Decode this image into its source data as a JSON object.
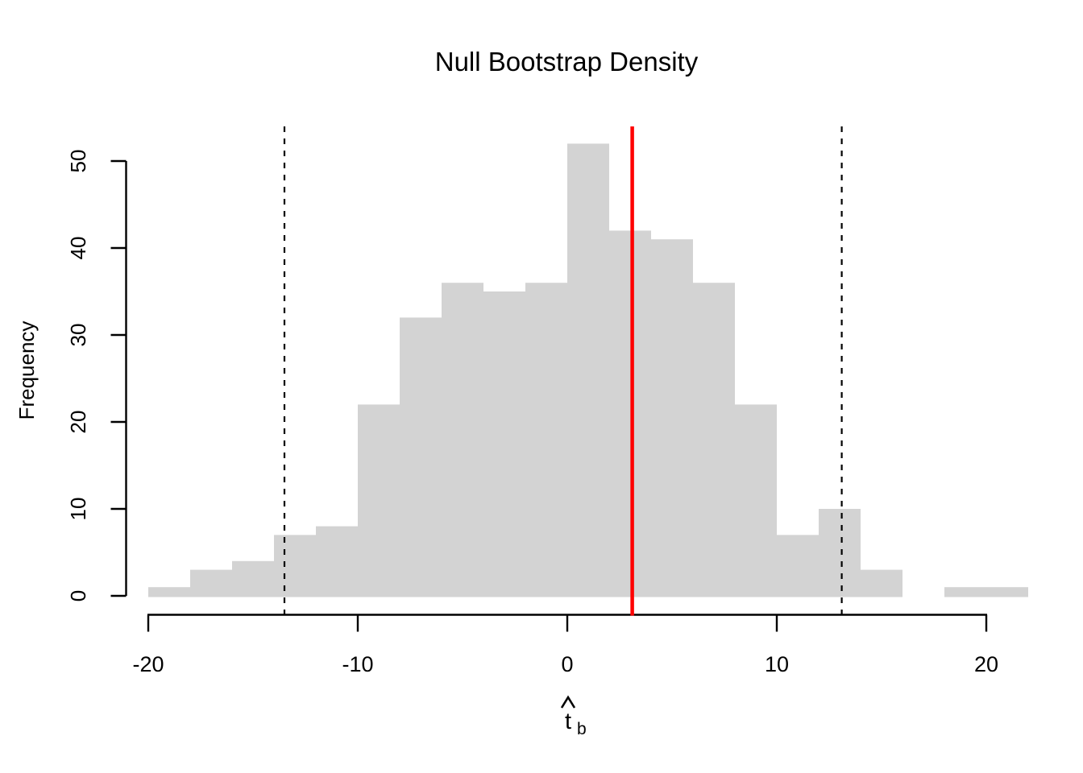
{
  "figure": {
    "title": "Null Bootstrap Density",
    "ylabel": "Frequency",
    "xlabel": {
      "base": "t",
      "sub": "b",
      "accent": "hat"
    }
  },
  "chart_data": {
    "type": "bar",
    "subtype": "histogram",
    "title": "Null Bootstrap Density",
    "xlabel": "t̂_b",
    "ylabel": "Frequency",
    "bin_edges": [
      -20,
      -18,
      -16,
      -14,
      -12,
      -10,
      -8,
      -6,
      -4,
      -2,
      0,
      2,
      4,
      6,
      8,
      10,
      12,
      14,
      16,
      18,
      20,
      22
    ],
    "counts": [
      1,
      3,
      4,
      7,
      8,
      22,
      32,
      36,
      35,
      36,
      52,
      42,
      41,
      36,
      22,
      7,
      10,
      3,
      0,
      1,
      1
    ],
    "x_ticks": [
      -20,
      -10,
      0,
      10,
      20
    ],
    "y_ticks": [
      0,
      10,
      20,
      30,
      40,
      50
    ],
    "xlim": [
      -20,
      22
    ],
    "ylim": [
      0,
      52
    ],
    "grid": false,
    "legend": null,
    "bar_color": "#D3D3D3",
    "axis_color": "#000000",
    "annotations": {
      "lower_critical_line": {
        "x": -13.5,
        "color": "#000000",
        "style": "dashed"
      },
      "upper_critical_line": {
        "x": 13.1,
        "color": "#000000",
        "style": "dashed"
      },
      "observed_statistic_line": {
        "x": 3.1,
        "color": "#FF0000",
        "style": "solid"
      }
    }
  }
}
